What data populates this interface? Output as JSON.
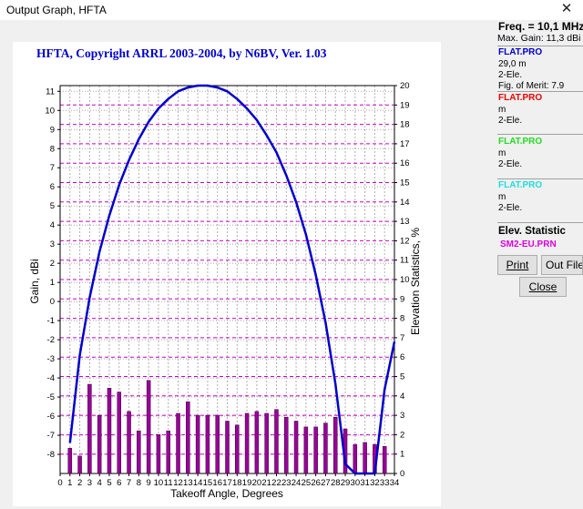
{
  "window": {
    "title": "Output Graph, HFTA",
    "close_glyph": "✕"
  },
  "header": "HFTA, Copyright ARRL 2003-2004, by N6BV, Ver. 1.03",
  "panel": {
    "freq": "Freq. = 10,1 MHz",
    "max_gain": "Max. Gain: 11,3 dBi",
    "files": [
      {
        "name": "FLAT.PRO",
        "color": "#0000cc",
        "lines": [
          "29,0 m",
          "2-Ele.",
          "Fig. of Merit:  7.9"
        ]
      },
      {
        "name": "FLAT.PRO",
        "color": "#ee0000",
        "lines": [
          " m",
          "2-Ele."
        ]
      },
      {
        "name": "FLAT.PRO",
        "color": "#22dd22",
        "lines": [
          " m",
          "2-Ele."
        ]
      },
      {
        "name": "FLAT.PRO",
        "color": "#22dddd",
        "lines": [
          " m",
          "2-Ele."
        ]
      }
    ],
    "elev_title": "Elev. Statistic",
    "elev_file": "SM2-EU.PRN",
    "elev_file_color": "#dd00dd",
    "buttons": {
      "print": "Print",
      "out_file": "Out File",
      "close": "Close"
    }
  },
  "chart_data": {
    "type": "bar+line",
    "xlabel": "Takeoff Angle, Degrees",
    "ylabel_left": "Gain, dBi",
    "ylabel_right": "Elevation Statistics, %",
    "xlim": [
      0,
      34
    ],
    "ylim_left": [
      -9,
      11.3
    ],
    "ylim_right": [
      0,
      20
    ],
    "x_ticks": [
      0,
      1,
      2,
      3,
      4,
      5,
      6,
      7,
      8,
      9,
      10,
      11,
      12,
      13,
      14,
      15,
      16,
      17,
      18,
      19,
      20,
      21,
      22,
      23,
      24,
      25,
      26,
      27,
      28,
      29,
      30,
      31,
      32,
      33,
      34
    ],
    "y_left_ticks": [
      -8,
      -7,
      -6,
      -5,
      -4,
      -3,
      -2,
      -1,
      0,
      1,
      2,
      3,
      4,
      5,
      6,
      7,
      8,
      9,
      10,
      11
    ],
    "y_right_ticks": [
      0,
      1,
      2,
      3,
      4,
      5,
      6,
      7,
      8,
      9,
      10,
      11,
      12,
      13,
      14,
      15,
      16,
      17,
      18,
      19,
      20
    ],
    "bar_color": "#990099",
    "line_color": "#0000cc",
    "grid": true,
    "elevation_stats": {
      "x": [
        1,
        2,
        3,
        4,
        5,
        6,
        7,
        8,
        9,
        10,
        11,
        12,
        13,
        14,
        15,
        16,
        17,
        18,
        19,
        20,
        21,
        22,
        23,
        24,
        25,
        26,
        27,
        28,
        29,
        30,
        31,
        32,
        33
      ],
      "values": [
        1.3,
        0.9,
        4.6,
        3.0,
        4.4,
        4.2,
        3.2,
        2.2,
        4.8,
        2.0,
        2.2,
        3.1,
        3.7,
        3.0,
        3.0,
        3.0,
        2.7,
        2.5,
        3.1,
        3.2,
        3.1,
        3.3,
        2.9,
        2.7,
        2.4,
        2.4,
        2.6,
        2.9,
        2.3,
        1.5,
        1.6,
        1.5,
        1.4
      ]
    },
    "gain_curve": {
      "x": [
        1,
        2,
        3,
        4,
        5,
        6,
        7,
        8,
        9,
        10,
        11,
        12,
        13,
        14,
        15,
        16,
        17,
        18,
        19,
        20,
        21,
        22,
        23,
        24,
        25,
        26,
        27,
        28,
        29,
        30,
        31,
        32,
        33,
        34
      ],
      "y": [
        -7.4,
        -2.8,
        0.2,
        2.6,
        4.5,
        6.1,
        7.4,
        8.5,
        9.4,
        10.1,
        10.6,
        11.0,
        11.2,
        11.3,
        11.3,
        11.2,
        11.0,
        10.6,
        10.1,
        9.5,
        8.7,
        7.8,
        6.6,
        5.2,
        3.5,
        1.4,
        -1.1,
        -4.3,
        -8.5,
        -9.0,
        -9.0,
        -9.0,
        -4.6,
        -2.1
      ]
    }
  }
}
